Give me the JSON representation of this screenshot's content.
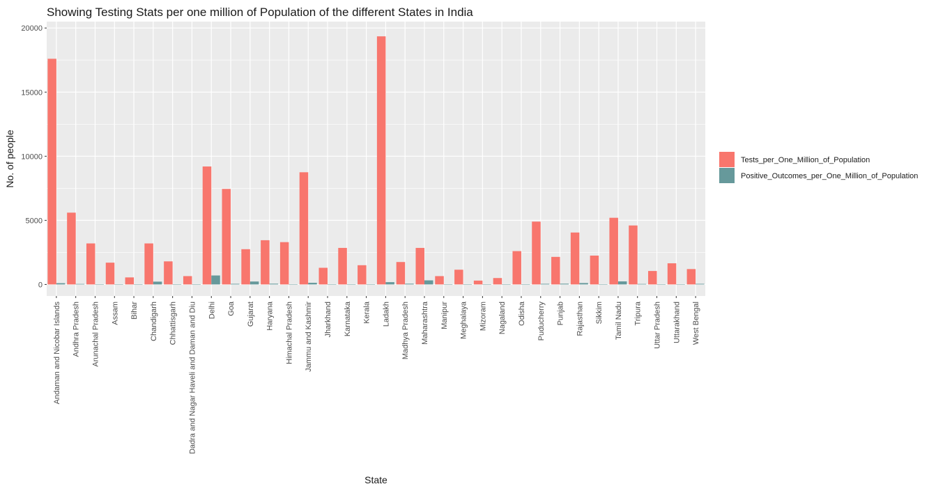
{
  "chart_data": {
    "type": "bar",
    "title": "Showing Testing Stats per one million of Population of the different States in India",
    "xlabel": "State",
    "ylabel": "No. of people",
    "ylim": [
      -900,
      20500
    ],
    "yticks": [
      0,
      5000,
      10000,
      15000,
      20000
    ],
    "grid": true,
    "legend_position": "right",
    "categories": [
      "Andaman and Nicobar Islands",
      "Andhra Pradesh",
      "Arunachal Pradesh",
      "Assam",
      "Bihar",
      "Chandigarh",
      "Chhattisgarh",
      "Dadra and Nagar Haveli and Daman and Diu",
      "Delhi",
      "Goa",
      "Gujarat",
      "Haryana",
      "Himachal Pradesh",
      "Jammu and Kashmir",
      "Jharkhand",
      "Karnataka",
      "Kerala",
      "Ladakh",
      "Madhya Pradesh",
      "Maharashtra",
      "Manipur",
      "Meghalaya",
      "Mizoram",
      "Nagaland",
      "Odisha",
      "Puducherry",
      "Punjab",
      "Rajasthan",
      "Sikkim",
      "Tamil Nadu",
      "Tripura",
      "Uttar Pradesh",
      "Uttarakhand",
      "West Bengal"
    ],
    "series": [
      {
        "name": "Tests_per_One_Million_of_Population",
        "color": "#F8766D",
        "values": [
          17600,
          5600,
          3200,
          1700,
          550,
          3200,
          1800,
          650,
          9200,
          7450,
          2750,
          3450,
          3300,
          8750,
          1300,
          2850,
          1500,
          19350,
          1750,
          2850,
          650,
          1150,
          300,
          500,
          2600,
          4900,
          2150,
          4050,
          2250,
          5200,
          4600,
          1050,
          1650,
          1200
        ]
      },
      {
        "name": "Positive_Outcomes_per_One_Million_of_Population",
        "color": "#66999B",
        "values": [
          100,
          40,
          5,
          5,
          5,
          220,
          10,
          10,
          700,
          50,
          230,
          60,
          20,
          130,
          15,
          10,
          10,
          180,
          60,
          320,
          10,
          5,
          5,
          5,
          20,
          50,
          60,
          110,
          10,
          240,
          40,
          20,
          20,
          50
        ]
      }
    ]
  }
}
